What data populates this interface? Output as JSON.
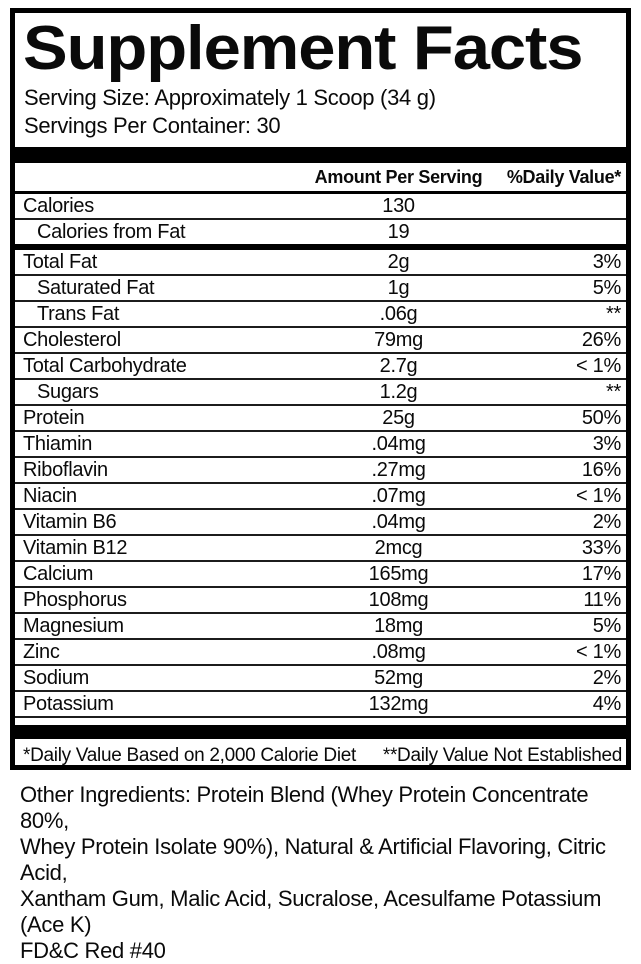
{
  "label": {
    "title": "Supplement Facts",
    "serving_size": "Serving Size: Approximately 1 Scoop (34 g)",
    "servings_per_container": "Servings Per Container: 30",
    "table": {
      "columns": {
        "amount": "Amount Per Serving",
        "daily_value": "%Daily Value*"
      },
      "rows": [
        {
          "name": "Calories",
          "amount": "130",
          "dv": "",
          "indent": false,
          "thick_after": false
        },
        {
          "name": "Calories from Fat",
          "amount": "19",
          "dv": "",
          "indent": true,
          "thick_after": true
        },
        {
          "name": "Total Fat",
          "amount": "2g",
          "dv": "3%",
          "indent": false,
          "thick_after": false
        },
        {
          "name": "Saturated Fat",
          "amount": "1g",
          "dv": "5%",
          "indent": true,
          "thick_after": false
        },
        {
          "name": "Trans Fat",
          "amount": ".06g",
          "dv": "**",
          "indent": true,
          "thick_after": false
        },
        {
          "name": "Cholesterol",
          "amount": "79mg",
          "dv": "26%",
          "indent": false,
          "thick_after": false
        },
        {
          "name": "Total Carbohydrate",
          "amount": "2.7g",
          "dv": "< 1%",
          "indent": false,
          "thick_after": false
        },
        {
          "name": "Sugars",
          "amount": "1.2g",
          "dv": "**",
          "indent": true,
          "thick_after": false
        },
        {
          "name": "Protein",
          "amount": "25g",
          "dv": "50%",
          "indent": false,
          "thick_after": false
        },
        {
          "name": "Thiamin",
          "amount": ".04mg",
          "dv": "3%",
          "indent": false,
          "thick_after": false
        },
        {
          "name": "Riboflavin",
          "amount": ".27mg",
          "dv": "16%",
          "indent": false,
          "thick_after": false
        },
        {
          "name": "Niacin",
          "amount": ".07mg",
          "dv": "< 1%",
          "indent": false,
          "thick_after": false
        },
        {
          "name": "Vitamin B6",
          "amount": ".04mg",
          "dv": "2%",
          "indent": false,
          "thick_after": false
        },
        {
          "name": "Vitamin B12",
          "amount": "2mcg",
          "dv": "33%",
          "indent": false,
          "thick_after": false
        },
        {
          "name": "Calcium",
          "amount": "165mg",
          "dv": "17%",
          "indent": false,
          "thick_after": false
        },
        {
          "name": "Phosphorus",
          "amount": "108mg",
          "dv": "11%",
          "indent": false,
          "thick_after": false
        },
        {
          "name": "Magnesium",
          "amount": "18mg",
          "dv": "5%",
          "indent": false,
          "thick_after": false
        },
        {
          "name": "Zinc",
          "amount": ".08mg",
          "dv": "< 1%",
          "indent": false,
          "thick_after": false
        },
        {
          "name": "Sodium",
          "amount": "52mg",
          "dv": "2%",
          "indent": false,
          "thick_after": false
        },
        {
          "name": "Potassium",
          "amount": "132mg",
          "dv": "4%",
          "indent": false,
          "thick_after": false
        }
      ]
    },
    "footnotes": {
      "left": "*Daily Value Based on 2,000 Calorie Diet",
      "right": "**Daily Value Not Established"
    },
    "colors": {
      "ink": "#000000",
      "background": "#ffffff"
    }
  },
  "other_ingredients_lines": [
    "Other Ingredients: Protein Blend (Whey Protein Concentrate 80%,",
    "Whey Protein Isolate 90%), Natural & Artificial Flavoring, Citric Acid,",
    "Xantham Gum, Malic Acid, Sucralose, Acesulfame Potassium (Ace K)",
    "FD&C Red #40"
  ]
}
